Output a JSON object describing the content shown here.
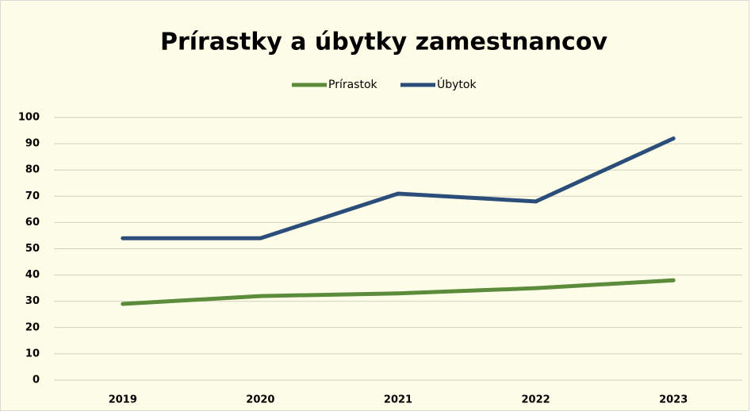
{
  "chart_data": {
    "type": "line",
    "title": "Prírastky a úbytky zamestnancov",
    "categories": [
      "2019",
      "2020",
      "2021",
      "2022",
      "2023"
    ],
    "series": [
      {
        "name": "Prírastok",
        "color": "#5b8b3b",
        "values": [
          29,
          32,
          33,
          35,
          38
        ]
      },
      {
        "name": "Úbytok",
        "color": "#2b4d7a",
        "values": [
          54,
          54,
          71,
          68,
          92
        ]
      }
    ],
    "ylim": [
      0,
      100
    ],
    "yticks": [
      0,
      10,
      20,
      30,
      40,
      50,
      60,
      70,
      80,
      90,
      100
    ],
    "grid": true,
    "legend": "top"
  }
}
